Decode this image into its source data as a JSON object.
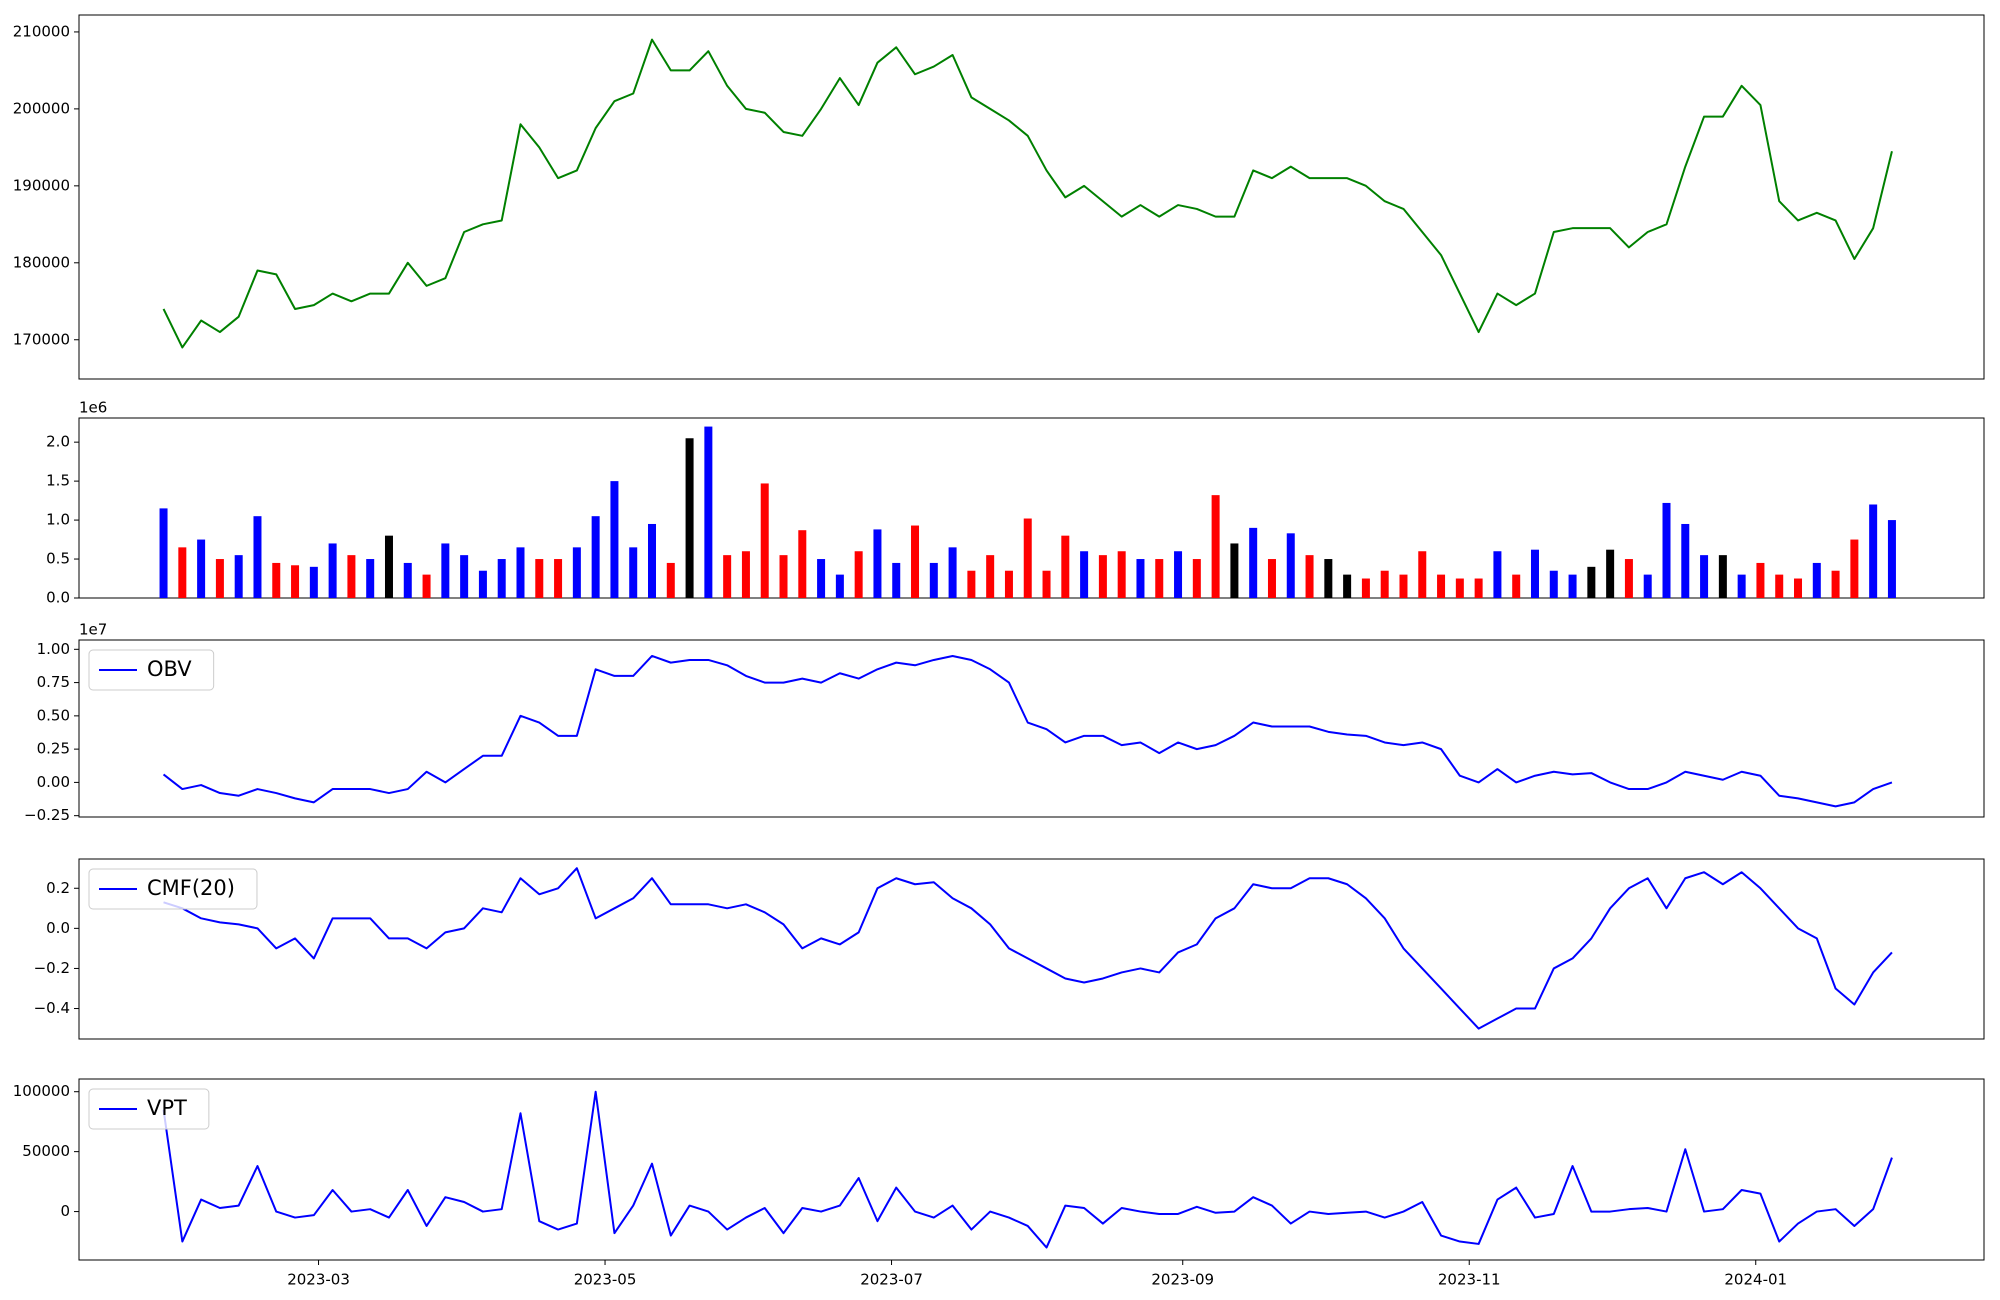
{
  "chart_data": [
    {
      "type": "line",
      "color": "#008000",
      "x": [
        26,
        30,
        34,
        38,
        42,
        46,
        50,
        54,
        58,
        62,
        66,
        70,
        74,
        78,
        82,
        86,
        90,
        94,
        98,
        102,
        106,
        110,
        114,
        118,
        122,
        126,
        130,
        134,
        138,
        142,
        146,
        150,
        154,
        158,
        162,
        166,
        170,
        174,
        178,
        182,
        186,
        190,
        194,
        198,
        202,
        206,
        210,
        214,
        218,
        222,
        226,
        230,
        234,
        238,
        242,
        246,
        250,
        254,
        258,
        262,
        266,
        270,
        274,
        278,
        282,
        286,
        290,
        294,
        298,
        302,
        306,
        310,
        314,
        318,
        322,
        326,
        330,
        334,
        338,
        342,
        346,
        350,
        354,
        358,
        362,
        366,
        370,
        374,
        378,
        382,
        386,
        390,
        394
      ],
      "values": [
        174000,
        169000,
        172500,
        171000,
        173000,
        179000,
        178500,
        174000,
        174500,
        176000,
        175000,
        176000,
        176000,
        180000,
        177000,
        178000,
        184000,
        185000,
        185500,
        198000,
        195000,
        191000,
        192000,
        197500,
        201000,
        202000,
        209000,
        205000,
        205000,
        207500,
        203000,
        200000,
        199500,
        197000,
        196500,
        200000,
        204000,
        200500,
        206000,
        208000,
        204500,
        205500,
        207000,
        201500,
        200000,
        198500,
        196500,
        192000,
        188500,
        190000,
        188000,
        186000,
        187500,
        186000,
        187500,
        187000,
        186000,
        186000,
        192000,
        191000,
        192500,
        191000,
        191000,
        191000,
        190000,
        188000,
        187000,
        184000,
        181000,
        176000,
        171000,
        176000,
        174500,
        176000,
        184000,
        184500,
        184500,
        184500,
        182000,
        184000,
        185000,
        192500,
        199000,
        199000,
        203000,
        200500,
        188000,
        185500,
        186500,
        185500,
        180500,
        184500,
        194500
      ],
      "xlim": [
        8,
        413.6
      ],
      "ylim": [
        164900,
        212200
      ],
      "yticks": [
        170000,
        180000,
        190000,
        200000,
        210000
      ]
    },
    {
      "type": "bar",
      "up_color": "#0000ff",
      "down_color": "#ff0000",
      "flat_color": "#000000",
      "offset_label": "1e6",
      "x": [
        26,
        30,
        34,
        38,
        42,
        46,
        50,
        54,
        58,
        62,
        66,
        70,
        74,
        78,
        82,
        86,
        90,
        94,
        98,
        102,
        106,
        110,
        114,
        118,
        122,
        126,
        130,
        134,
        138,
        142,
        146,
        150,
        154,
        158,
        162,
        166,
        170,
        174,
        178,
        182,
        186,
        190,
        194,
        198,
        202,
        206,
        210,
        214,
        218,
        222,
        226,
        230,
        234,
        238,
        242,
        246,
        250,
        254,
        258,
        262,
        266,
        270,
        274,
        278,
        282,
        286,
        290,
        294,
        298,
        302,
        306,
        310,
        314,
        318,
        322,
        326,
        330,
        334,
        338,
        342,
        346,
        350,
        354,
        358,
        362,
        366,
        370,
        374,
        378,
        382,
        386,
        390,
        394
      ],
      "values": [
        1.15,
        0.65,
        0.75,
        0.5,
        0.55,
        1.05,
        0.45,
        0.42,
        0.4,
        0.7,
        0.55,
        0.5,
        0.8,
        0.45,
        0.3,
        0.7,
        0.55,
        0.35,
        0.5,
        0.65,
        0.5,
        0.5,
        0.65,
        1.05,
        1.5,
        0.65,
        0.95,
        0.45,
        2.05,
        2.2,
        0.55,
        0.6,
        1.47,
        0.55,
        0.87,
        0.5,
        0.3,
        0.6,
        0.88,
        0.45,
        0.93,
        0.45,
        0.65,
        0.35,
        0.55,
        0.35,
        1.02,
        0.35,
        0.8,
        0.6,
        0.55,
        0.6,
        0.5,
        0.5,
        0.6,
        0.5,
        1.32,
        0.7,
        0.9,
        0.5,
        0.83,
        0.55,
        0.5,
        0.3,
        0.25,
        0.35,
        0.3,
        0.6,
        0.3,
        0.25,
        0.25,
        0.6,
        0.3,
        0.62,
        0.35,
        0.3,
        0.4,
        0.62,
        0.5,
        0.3,
        1.22,
        0.95,
        0.55,
        0.55,
        0.3,
        0.45,
        0.3,
        0.25,
        0.45,
        0.35,
        0.75,
        1.2,
        1.0
      ],
      "xlim": [
        8,
        413.6
      ],
      "ylim": [
        0,
        2.31
      ],
      "yticks": [
        {
          "value": 0,
          "label": "0.0"
        },
        0.5,
        {
          "value": 1,
          "label": "1.0"
        },
        1.5,
        {
          "value": 2,
          "label": "2.0"
        }
      ]
    },
    {
      "type": "line",
      "offset_label": "1e7",
      "legend": "upper left",
      "x": [
        26,
        30,
        34,
        38,
        42,
        46,
        50,
        54,
        58,
        62,
        66,
        70,
        74,
        78,
        82,
        86,
        90,
        94,
        98,
        102,
        106,
        110,
        114,
        118,
        122,
        126,
        130,
        134,
        138,
        142,
        146,
        150,
        154,
        158,
        162,
        166,
        170,
        174,
        178,
        182,
        186,
        190,
        194,
        198,
        202,
        206,
        210,
        214,
        218,
        222,
        226,
        230,
        234,
        238,
        242,
        246,
        250,
        254,
        258,
        262,
        266,
        270,
        274,
        278,
        282,
        286,
        290,
        294,
        298,
        302,
        306,
        310,
        314,
        318,
        322,
        326,
        330,
        334,
        338,
        342,
        346,
        350,
        354,
        358,
        362,
        366,
        370,
        374,
        378,
        382,
        386,
        390,
        394
      ],
      "series": [
        {
          "name": "OBV",
          "color": "#0000ff",
          "values": [
            0.06,
            -0.05,
            -0.02,
            -0.08,
            -0.1,
            -0.05,
            -0.08,
            -0.12,
            -0.15,
            -0.05,
            -0.05,
            -0.05,
            -0.08,
            -0.05,
            0.08,
            0.0,
            0.1,
            0.2,
            0.2,
            0.5,
            0.45,
            0.35,
            0.35,
            0.85,
            0.8,
            0.8,
            0.95,
            0.9,
            0.92,
            0.92,
            0.88,
            0.8,
            0.75,
            0.75,
            0.78,
            0.75,
            0.82,
            0.78,
            0.85,
            0.9,
            0.88,
            0.92,
            0.95,
            0.92,
            0.85,
            0.75,
            0.45,
            0.4,
            0.3,
            0.35,
            0.35,
            0.28,
            0.3,
            0.22,
            0.3,
            0.25,
            0.28,
            0.35,
            0.45,
            0.42,
            0.42,
            0.42,
            0.38,
            0.36,
            0.35,
            0.3,
            0.28,
            0.3,
            0.25,
            0.05,
            0.0,
            0.1,
            0.0,
            0.05,
            0.08,
            0.06,
            0.07,
            0.0,
            -0.05,
            -0.05,
            0.0,
            0.08,
            0.05,
            0.02,
            0.08,
            0.05,
            -0.1,
            -0.12,
            -0.15,
            -0.18,
            -0.15,
            -0.05,
            0.0
          ]
        }
      ],
      "xlim": [
        8,
        413.6
      ],
      "ylim": [
        -0.26,
        1.07
      ],
      "yticks": [
        {
          "value": -0.25,
          "label": "−0.25"
        },
        {
          "value": 0,
          "label": "0.00"
        },
        0.25,
        {
          "value": 0.5,
          "label": "0.50"
        },
        0.75,
        {
          "value": 1,
          "label": "1.00"
        }
      ]
    },
    {
      "type": "line",
      "legend": "upper left",
      "x": [
        26,
        30,
        34,
        38,
        42,
        46,
        50,
        54,
        58,
        62,
        66,
        70,
        74,
        78,
        82,
        86,
        90,
        94,
        98,
        102,
        106,
        110,
        114,
        118,
        122,
        126,
        130,
        134,
        138,
        142,
        146,
        150,
        154,
        158,
        162,
        166,
        170,
        174,
        178,
        182,
        186,
        190,
        194,
        198,
        202,
        206,
        210,
        214,
        218,
        222,
        226,
        230,
        234,
        238,
        242,
        246,
        250,
        254,
        258,
        262,
        266,
        270,
        274,
        278,
        282,
        286,
        290,
        294,
        298,
        302,
        306,
        310,
        314,
        318,
        322,
        326,
        330,
        334,
        338,
        342,
        346,
        350,
        354,
        358,
        362,
        366,
        370,
        374,
        378,
        382,
        386,
        390,
        394
      ],
      "series": [
        {
          "name": "CMF(20)",
          "color": "#0000ff",
          "values": [
            0.13,
            0.1,
            0.05,
            0.03,
            0.02,
            0.0,
            -0.1,
            -0.05,
            -0.15,
            0.05,
            0.05,
            0.05,
            -0.05,
            -0.05,
            -0.1,
            -0.02,
            0.0,
            0.1,
            0.08,
            0.25,
            0.17,
            0.2,
            0.3,
            0.05,
            0.1,
            0.15,
            0.25,
            0.12,
            0.12,
            0.12,
            0.1,
            0.12,
            0.08,
            0.02,
            -0.1,
            -0.05,
            -0.08,
            -0.02,
            0.2,
            0.25,
            0.22,
            0.23,
            0.15,
            0.1,
            0.02,
            -0.1,
            -0.15,
            -0.2,
            -0.25,
            -0.27,
            -0.25,
            -0.22,
            -0.2,
            -0.22,
            -0.12,
            -0.08,
            0.05,
            0.1,
            0.22,
            0.2,
            0.2,
            0.25,
            0.25,
            0.22,
            0.15,
            0.05,
            -0.1,
            -0.2,
            -0.3,
            -0.4,
            -0.5,
            -0.45,
            -0.4,
            -0.4,
            -0.2,
            -0.15,
            -0.05,
            0.1,
            0.2,
            0.25,
            0.1,
            0.25,
            0.28,
            0.22,
            0.28,
            0.2,
            0.1,
            0.0,
            -0.05,
            -0.3,
            -0.38,
            -0.22,
            -0.12
          ]
        }
      ],
      "xlim": [
        8,
        413.6
      ],
      "ylim": [
        -0.552,
        0.346
      ],
      "yticks": [
        {
          "value": -0.4,
          "label": "−0.4"
        },
        {
          "value": -0.2,
          "label": "−0.2"
        },
        {
          "value": 0,
          "label": "0.0"
        },
        0.2
      ]
    },
    {
      "type": "line",
      "legend": "upper left",
      "x": [
        26,
        30,
        34,
        38,
        42,
        46,
        50,
        54,
        58,
        62,
        66,
        70,
        74,
        78,
        82,
        86,
        90,
        94,
        98,
        102,
        106,
        110,
        114,
        118,
        122,
        126,
        130,
        134,
        138,
        142,
        146,
        150,
        154,
        158,
        162,
        166,
        170,
        174,
        178,
        182,
        186,
        190,
        194,
        198,
        202,
        206,
        210,
        214,
        218,
        222,
        226,
        230,
        234,
        238,
        242,
        246,
        250,
        254,
        258,
        262,
        266,
        270,
        274,
        278,
        282,
        286,
        290,
        294,
        298,
        302,
        306,
        310,
        314,
        318,
        322,
        326,
        330,
        334,
        338,
        342,
        346,
        350,
        354,
        358,
        362,
        366,
        370,
        374,
        378,
        382,
        386,
        390,
        394
      ],
      "series": [
        {
          "name": "VPT",
          "color": "#0000ff",
          "values": [
            85000,
            -25000,
            10000,
            3000,
            5000,
            38000,
            0,
            -5000,
            -3000,
            18000,
            0,
            2000,
            -5000,
            18000,
            -12000,
            12000,
            8000,
            0,
            2000,
            82000,
            -8000,
            -15000,
            -10000,
            100000,
            -18000,
            5000,
            40000,
            -20000,
            5000,
            0,
            -15000,
            -5000,
            3000,
            -18000,
            3000,
            0,
            5000,
            28000,
            -8000,
            20000,
            0,
            -5000,
            5000,
            -15000,
            0,
            -5000,
            -12000,
            -30000,
            5000,
            3000,
            -10000,
            3000,
            0,
            -2000,
            -2000,
            4000,
            -1000,
            0,
            12000,
            5000,
            -10000,
            0,
            -2000,
            -1000,
            0,
            -5000,
            0,
            8000,
            -20000,
            -25000,
            -27000,
            10000,
            20000,
            -5000,
            -2000,
            38000,
            0,
            0,
            2000,
            3000,
            0,
            52000,
            0,
            2000,
            18000,
            15000,
            -25000,
            -10000,
            0,
            2000,
            -12000,
            2000,
            45000
          ]
        }
      ],
      "xlim": [
        8,
        413.6
      ],
      "ylim": [
        -40400,
        110600
      ],
      "yticks": [
        0,
        50000,
        100000
      ],
      "xticks": [
        {
          "value": 59,
          "label": "2023-03"
        },
        {
          "value": 120,
          "label": "2023-05"
        },
        {
          "value": 181,
          "label": "2023-07"
        },
        {
          "value": 243,
          "label": "2023-09"
        },
        {
          "value": 304,
          "label": "2023-11"
        },
        {
          "value": 365,
          "label": "2024-01"
        }
      ]
    }
  ]
}
